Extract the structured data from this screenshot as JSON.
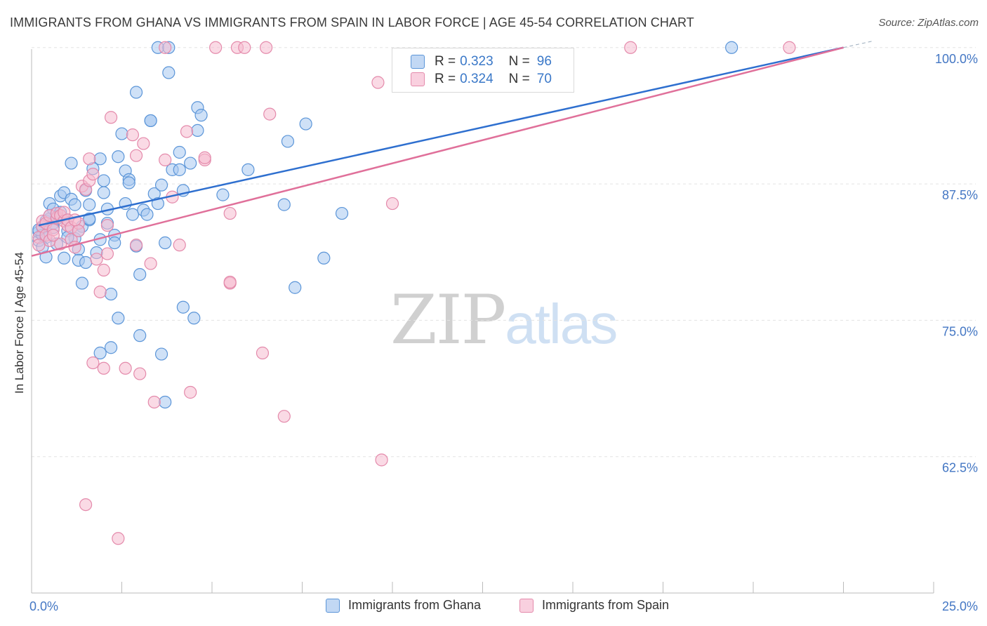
{
  "title": "IMMIGRANTS FROM GHANA VS IMMIGRANTS FROM SPAIN IN LABOR FORCE | AGE 45-54 CORRELATION CHART",
  "source": "Source: ZipAtlas.com",
  "watermark": {
    "zip": "ZIP",
    "atlas": "atlas"
  },
  "colors": {
    "ghana_fill": "#a8c8f0",
    "ghana_stroke": "#5b95d8",
    "ghana_line": "#2e6fcf",
    "spain_fill": "#f5bcd0",
    "spain_stroke": "#e48aab",
    "spain_line": "#e0709a",
    "axis_text": "#4477c4",
    "grid": "#e3e3e3"
  },
  "legend": {
    "rows": [
      {
        "r_label": "R =",
        "r_value": "0.323",
        "n_label": "N =",
        "n_value": "96"
      },
      {
        "r_label": "R =",
        "r_value": "0.324",
        "n_label": "N =",
        "n_value": "70"
      }
    ]
  },
  "bottom_legend": [
    "Immigrants from Ghana",
    "Immigrants from Spain"
  ],
  "chart_data": {
    "type": "scatter",
    "title": "IMMIGRANTS FROM GHANA VS IMMIGRANTS FROM SPAIN IN LABOR FORCE | AGE 45-54 CORRELATION CHART",
    "xlabel": "",
    "ylabel": "In Labor Force | Age 45-54",
    "xlim": [
      0,
      25
    ],
    "ylim": [
      50,
      100.5
    ],
    "x_tick_labels": [
      "0.0%",
      "25.0%"
    ],
    "y_ticks": [
      62.5,
      75.0,
      87.5,
      100.0
    ],
    "y_tick_labels": [
      "62.5%",
      "75.0%",
      "87.5%",
      "100.0%"
    ],
    "series": [
      {
        "name": "Immigrants from Ghana",
        "trend": {
          "x0": 0.2,
          "y0": 83.7,
          "x1": 22.5,
          "y1": 100.0
        },
        "points": [
          [
            0.2,
            82.3
          ],
          [
            0.2,
            83.1
          ],
          [
            0.3,
            83.5
          ],
          [
            0.3,
            82.8
          ],
          [
            0.4,
            84.1
          ],
          [
            0.4,
            80.8
          ],
          [
            0.5,
            85.7
          ],
          [
            0.5,
            84.3
          ],
          [
            0.6,
            85.2
          ],
          [
            0.6,
            83.9
          ],
          [
            0.7,
            84.5
          ],
          [
            0.7,
            82.0
          ],
          [
            0.8,
            86.4
          ],
          [
            0.8,
            84.9
          ],
          [
            0.9,
            86.7
          ],
          [
            0.9,
            80.7
          ],
          [
            1.0,
            83.2
          ],
          [
            1.0,
            84.2
          ],
          [
            1.1,
            89.4
          ],
          [
            1.1,
            86.1
          ],
          [
            1.2,
            85.6
          ],
          [
            1.2,
            82.5
          ],
          [
            1.3,
            81.5
          ],
          [
            1.3,
            80.5
          ],
          [
            1.4,
            83.6
          ],
          [
            1.4,
            78.4
          ],
          [
            1.5,
            80.3
          ],
          [
            1.5,
            86.9
          ],
          [
            1.6,
            84.2
          ],
          [
            1.6,
            84.3
          ],
          [
            1.7,
            88.9
          ],
          [
            1.8,
            81.2
          ],
          [
            1.9,
            82.4
          ],
          [
            1.9,
            89.8
          ],
          [
            2.0,
            86.7
          ],
          [
            2.0,
            87.8
          ],
          [
            2.1,
            85.2
          ],
          [
            2.2,
            77.4
          ],
          [
            2.2,
            72.5
          ],
          [
            2.3,
            82.8
          ],
          [
            2.3,
            82.1
          ],
          [
            2.4,
            75.2
          ],
          [
            2.4,
            90.0
          ],
          [
            2.5,
            92.1
          ],
          [
            2.6,
            88.7
          ],
          [
            2.6,
            85.7
          ],
          [
            2.7,
            87.9
          ],
          [
            2.7,
            87.6
          ],
          [
            2.8,
            84.7
          ],
          [
            2.9,
            95.9
          ],
          [
            2.9,
            81.8
          ],
          [
            3.0,
            79.2
          ],
          [
            3.0,
            73.6
          ],
          [
            3.1,
            85.1
          ],
          [
            3.2,
            84.7
          ],
          [
            3.3,
            93.3
          ],
          [
            3.3,
            93.3
          ],
          [
            3.4,
            86.6
          ],
          [
            3.5,
            85.7
          ],
          [
            3.6,
            71.9
          ],
          [
            3.6,
            87.4
          ],
          [
            3.7,
            82.1
          ],
          [
            3.8,
            97.7
          ],
          [
            3.7,
            67.5
          ],
          [
            3.9,
            88.8
          ],
          [
            4.1,
            88.8
          ],
          [
            4.1,
            90.4
          ],
          [
            4.2,
            76.2
          ],
          [
            4.2,
            86.9
          ],
          [
            4.4,
            89.4
          ],
          [
            4.5,
            75.2
          ],
          [
            4.6,
            94.5
          ],
          [
            4.6,
            92.4
          ],
          [
            4.7,
            93.8
          ],
          [
            5.3,
            86.5
          ],
          [
            6.0,
            88.8
          ],
          [
            7.0,
            85.6
          ],
          [
            7.1,
            91.4
          ],
          [
            7.3,
            78.0
          ],
          [
            7.6,
            93.0
          ],
          [
            8.1,
            80.7
          ],
          [
            8.6,
            84.8
          ],
          [
            3.5,
            100.0
          ],
          [
            3.8,
            100.0
          ],
          [
            19.4,
            100.0
          ],
          [
            1.9,
            72.0
          ],
          [
            0.4,
            82.6
          ],
          [
            0.5,
            84.6
          ],
          [
            0.3,
            81.7
          ],
          [
            0.2,
            83.3
          ],
          [
            1.0,
            82.6
          ],
          [
            0.7,
            84.3
          ],
          [
            1.3,
            83.2
          ],
          [
            1.6,
            85.6
          ],
          [
            2.1,
            83.9
          ],
          [
            0.6,
            83.5
          ]
        ]
      },
      {
        "name": "Immigrants from Spain",
        "trend": {
          "x0": 0.0,
          "y0": 80.9,
          "x1": 22.5,
          "y1": 100.0
        },
        "points": [
          [
            0.2,
            82.6
          ],
          [
            0.2,
            81.9
          ],
          [
            0.3,
            83.6
          ],
          [
            0.3,
            84.1
          ],
          [
            0.4,
            82.8
          ],
          [
            0.4,
            83.9
          ],
          [
            0.5,
            84.6
          ],
          [
            0.5,
            82.3
          ],
          [
            0.6,
            83.3
          ],
          [
            0.7,
            84.4
          ],
          [
            0.7,
            84.8
          ],
          [
            0.8,
            84.6
          ],
          [
            0.9,
            84.1
          ],
          [
            0.9,
            84.9
          ],
          [
            1.0,
            83.7
          ],
          [
            1.0,
            84.2
          ],
          [
            1.1,
            82.4
          ],
          [
            1.1,
            83.5
          ],
          [
            1.2,
            81.7
          ],
          [
            1.3,
            83.9
          ],
          [
            1.3,
            83.2
          ],
          [
            1.4,
            87.3
          ],
          [
            1.5,
            87.0
          ],
          [
            1.6,
            87.8
          ],
          [
            1.7,
            88.4
          ],
          [
            1.8,
            80.6
          ],
          [
            1.9,
            77.6
          ],
          [
            2.0,
            79.6
          ],
          [
            2.1,
            83.7
          ],
          [
            2.1,
            81.1
          ],
          [
            2.2,
            93.6
          ],
          [
            2.6,
            70.6
          ],
          [
            2.8,
            92.0
          ],
          [
            2.9,
            81.9
          ],
          [
            2.9,
            90.1
          ],
          [
            3.1,
            91.2
          ],
          [
            3.3,
            80.2
          ],
          [
            3.4,
            67.5
          ],
          [
            3.7,
            89.7
          ],
          [
            3.7,
            100.0
          ],
          [
            3.9,
            86.3
          ],
          [
            4.1,
            81.9
          ],
          [
            4.3,
            92.3
          ],
          [
            4.4,
            68.4
          ],
          [
            4.8,
            89.7
          ],
          [
            4.8,
            89.9
          ],
          [
            5.1,
            100.0
          ],
          [
            5.5,
            84.8
          ],
          [
            5.5,
            78.4
          ],
          [
            5.5,
            78.5
          ],
          [
            5.7,
            100.0
          ],
          [
            5.9,
            100.0
          ],
          [
            6.4,
            72.0
          ],
          [
            6.5,
            100.0
          ],
          [
            6.6,
            93.9
          ],
          [
            7.0,
            66.2
          ],
          [
            9.6,
            96.8
          ],
          [
            9.7,
            62.2
          ],
          [
            10.0,
            85.7
          ],
          [
            16.6,
            100.0
          ],
          [
            21.0,
            100.0
          ],
          [
            1.5,
            58.1
          ],
          [
            2.4,
            55.0
          ],
          [
            1.7,
            71.1
          ],
          [
            2.0,
            70.6
          ],
          [
            3.0,
            70.1
          ],
          [
            1.6,
            89.8
          ],
          [
            0.8,
            82.0
          ],
          [
            1.2,
            84.2
          ],
          [
            0.6,
            82.8
          ]
        ]
      }
    ]
  },
  "y_axis_label": "In Labor Force | Age 45-54"
}
